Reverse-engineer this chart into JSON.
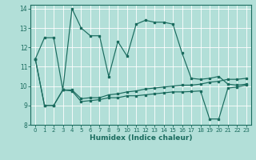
{
  "title": "",
  "xlabel": "Humidex (Indice chaleur)",
  "background_color": "#b2dfd8",
  "line_color": "#1a6b5e",
  "grid_color": "#c8e8e2",
  "xlim": [
    -0.5,
    23.5
  ],
  "ylim": [
    8,
    14.2
  ],
  "yticks": [
    8,
    9,
    10,
    11,
    12,
    13,
    14
  ],
  "xticks": [
    0,
    1,
    2,
    3,
    4,
    5,
    6,
    7,
    8,
    9,
    10,
    11,
    12,
    13,
    14,
    15,
    16,
    17,
    18,
    19,
    20,
    21,
    22,
    23
  ],
  "series": [
    [
      11.4,
      12.5,
      12.5,
      9.8,
      14.0,
      13.0,
      12.6,
      12.6,
      10.5,
      12.3,
      11.55,
      13.2,
      13.4,
      13.3,
      13.3,
      13.2,
      11.7,
      10.4,
      10.35,
      10.4,
      10.5,
      10.1,
      10.05,
      10.1
    ],
    [
      11.4,
      9.0,
      9.0,
      9.8,
      9.8,
      9.35,
      9.4,
      9.4,
      9.55,
      9.6,
      9.7,
      9.75,
      9.85,
      9.9,
      9.95,
      10.0,
      10.05,
      10.05,
      10.1,
      10.2,
      10.25,
      10.35,
      10.35,
      10.4
    ],
    [
      11.4,
      9.0,
      9.0,
      9.8,
      9.75,
      9.2,
      9.25,
      9.3,
      9.4,
      9.4,
      9.5,
      9.5,
      9.55,
      9.6,
      9.65,
      9.7,
      9.7,
      9.72,
      9.75,
      8.3,
      8.3,
      9.9,
      9.95,
      10.05
    ]
  ]
}
